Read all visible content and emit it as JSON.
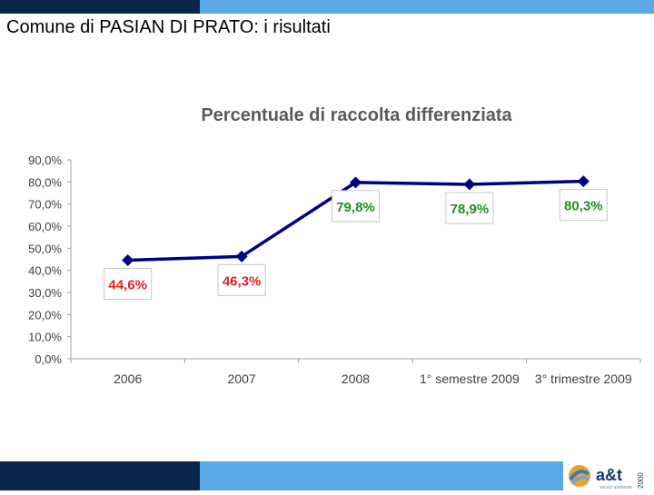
{
  "slide": {
    "title": "Comune di PASIAN DI PRATO: i risultati"
  },
  "colors": {
    "navy": "#08254a",
    "light_blue": "#5aa9e6",
    "series": "#000080",
    "label_low": "#e02020",
    "label_high": "#1f8f1f"
  },
  "logo": {
    "text": "a&t",
    "year": "2000",
    "tagline": "servizi ambiente"
  },
  "chart_data": {
    "type": "line",
    "title": "Percentuale di raccolta differenziata",
    "categories": [
      "2006",
      "2007",
      "2008",
      "1° semestre 2009",
      "3° trimestre 2009"
    ],
    "series": [
      {
        "values": [
          44.6,
          46.3,
          79.8,
          78.9,
          80.3
        ]
      }
    ],
    "data_labels": [
      "44,6%",
      "46,3%",
      "79,8%",
      "78,9%",
      "80,3%"
    ],
    "yticks": [
      "0,0%",
      "10,0%",
      "20,0%",
      "30,0%",
      "40,0%",
      "50,0%",
      "60,0%",
      "70,0%",
      "80,0%",
      "90,0%"
    ],
    "ylim": [
      0,
      90
    ],
    "grid": false,
    "legend": "none"
  }
}
